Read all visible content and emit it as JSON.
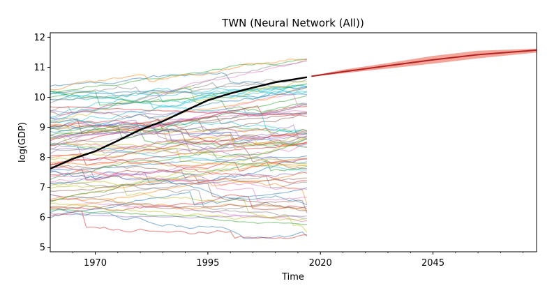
{
  "chart_data": {
    "type": "line",
    "title": "TWN (Neural Network (All))",
    "xlabel": "Time",
    "ylabel": "log(GDP)",
    "xlim": [
      1960,
      2068
    ],
    "ylim": [
      4.85,
      12.15
    ],
    "x_ticks": [
      1970,
      1995,
      2020,
      2045
    ],
    "x_tick_labels": [
      "1970",
      "1995",
      "2020",
      "2045"
    ],
    "y_ticks": [
      5,
      6,
      7,
      8,
      9,
      10,
      11,
      12
    ],
    "y_tick_labels": [
      "5",
      "6",
      "7",
      "8",
      "9",
      "10",
      "11",
      "12"
    ],
    "grid": false,
    "legend": "none",
    "historical_range": [
      1960,
      2017
    ],
    "background_series_count": 85,
    "background_range": [
      5.3,
      11.5
    ],
    "series": [
      {
        "role": "target",
        "color": "#000000",
        "x": [
          1960,
          1965,
          1970,
          1975,
          1980,
          1985,
          1990,
          1995,
          2000,
          2005,
          2010,
          2015,
          2017
        ],
        "values": [
          7.62,
          7.95,
          8.2,
          8.55,
          8.92,
          9.2,
          9.55,
          9.9,
          10.13,
          10.32,
          10.5,
          10.62,
          10.67
        ]
      },
      {
        "role": "forecast",
        "color": "#b22222",
        "band_color": "#f08070",
        "x": [
          2018,
          2025,
          2035,
          2045,
          2055,
          2068
        ],
        "values": [
          10.7,
          10.85,
          11.05,
          11.25,
          11.42,
          11.57
        ],
        "band_lower": [
          10.69,
          10.8,
          10.96,
          11.12,
          11.3,
          11.49
        ],
        "band_upper": [
          10.71,
          10.92,
          11.14,
          11.38,
          11.55,
          11.62
        ]
      }
    ],
    "palette": [
      "#1f77b4",
      "#ff7f0e",
      "#2ca02c",
      "#d62728",
      "#9467bd",
      "#8c564b",
      "#e377c2",
      "#7f7f7f",
      "#bcbd22",
      "#17becf"
    ]
  }
}
